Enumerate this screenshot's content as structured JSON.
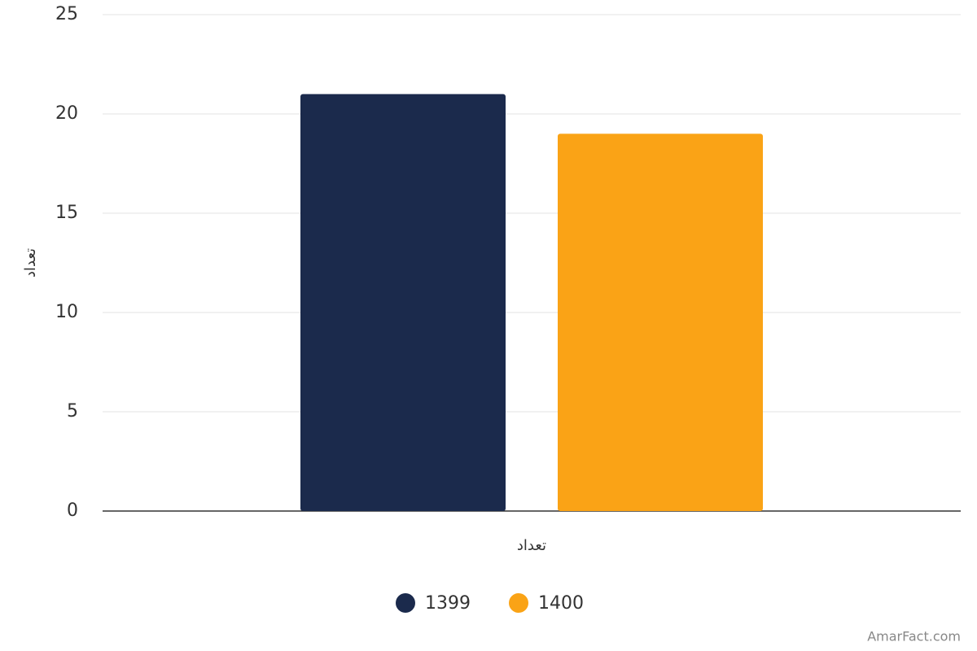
{
  "chart_data": {
    "type": "bar",
    "y_label": "تعداد",
    "categories": [
      "تعداد"
    ],
    "series": [
      {
        "name": "1399",
        "color": "#1b2a4c",
        "values": [
          21
        ]
      },
      {
        "name": "1400",
        "color": "#faa316",
        "values": [
          19
        ]
      }
    ],
    "ylim": [
      0,
      25
    ],
    "yticks": [
      0,
      5,
      10,
      15,
      20,
      25
    ],
    "grid": true,
    "credit": "AmarFact.com"
  }
}
